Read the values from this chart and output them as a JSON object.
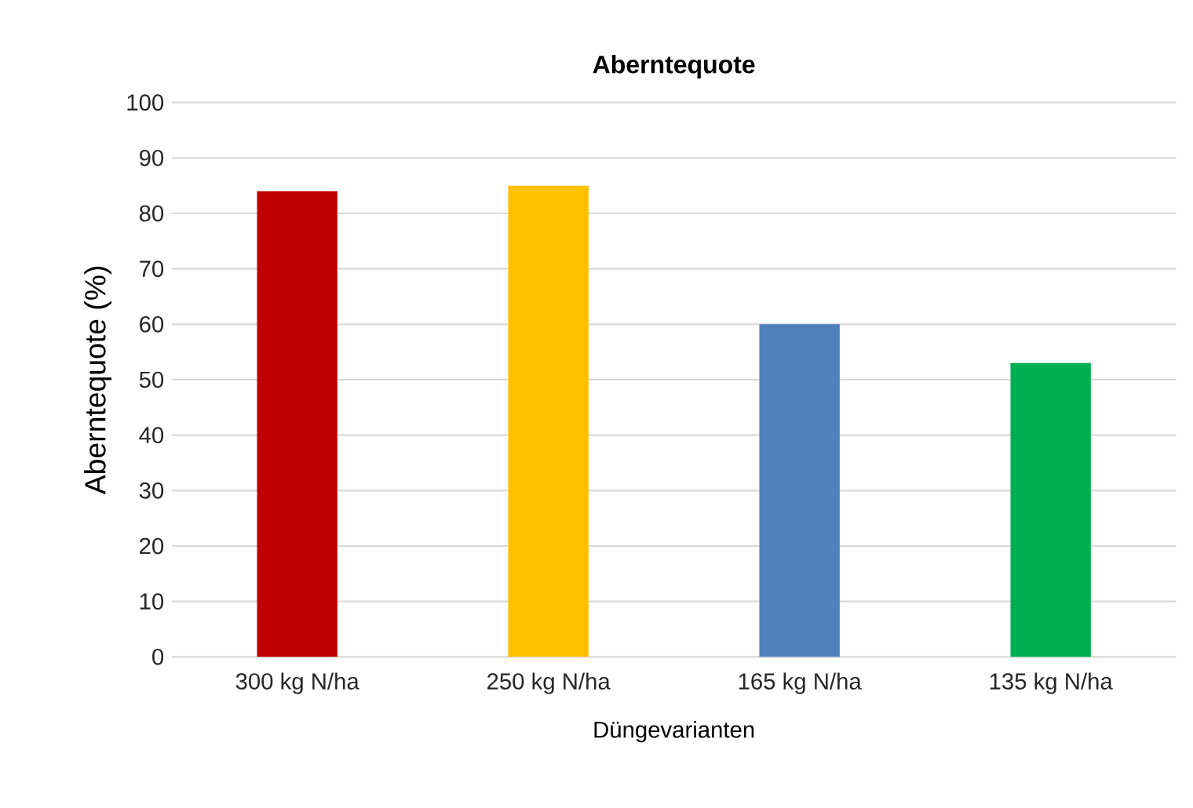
{
  "chart_data": {
    "type": "bar",
    "title": "Aberntequote",
    "xlabel": "Düngevarianten",
    "ylabel": "Aberntequote (%)",
    "categories": [
      "300 kg N/ha",
      "250 kg N/ha",
      "165 kg N/ha",
      "135 kg N/ha"
    ],
    "values": [
      84,
      85,
      60,
      53
    ],
    "colors": [
      "#c00000",
      "#ffc000",
      "#4f81bd",
      "#00b050"
    ],
    "ylim": [
      0,
      100
    ],
    "yticks": [
      0,
      10,
      20,
      30,
      40,
      50,
      60,
      70,
      80,
      90,
      100
    ],
    "grid": "y"
  }
}
